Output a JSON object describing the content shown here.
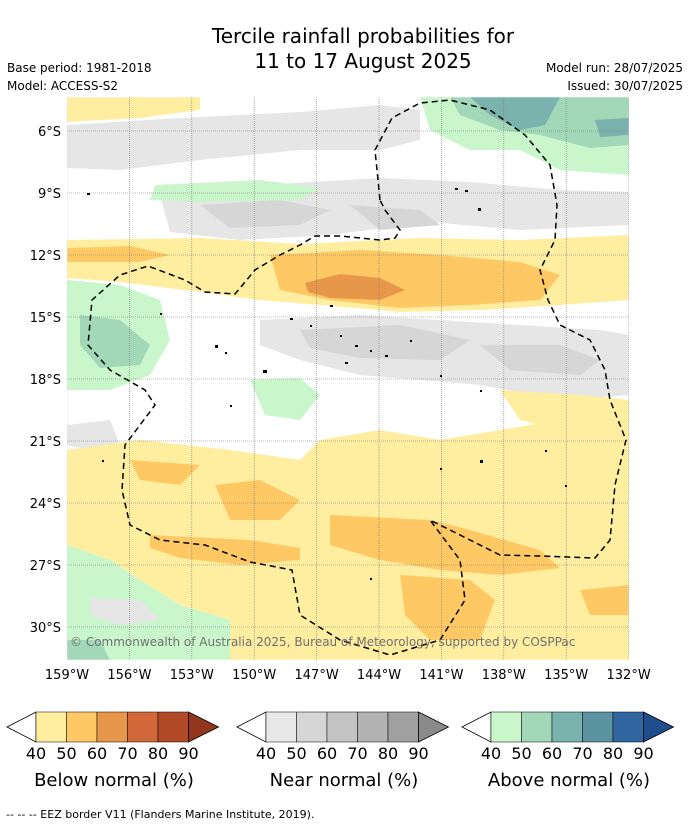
{
  "title": {
    "line1": "Tercile rainfall probabilities for",
    "line2": "11 to 17 August 2025"
  },
  "meta": {
    "base_period": "Base period: 1981-2018",
    "model": "Model: ACCESS-S2",
    "model_run": "Model run: 28/07/2025",
    "issued": "Issued: 30/07/2025"
  },
  "map": {
    "lat_labels": [
      "6°S",
      "9°S",
      "12°S",
      "15°S",
      "18°S",
      "21°S",
      "24°S",
      "27°S",
      "30°S"
    ],
    "lon_labels": [
      "159°W",
      "156°W",
      "153°W",
      "150°W",
      "147°W",
      "144°W",
      "141°W",
      "138°W",
      "135°W",
      "132°W"
    ],
    "copyright": "© Commonwealth of Australia 2025, Bureau of Meteorology, supported by COSPPac"
  },
  "legend": {
    "below": {
      "caption": "Below normal (%)",
      "ticks": [
        "40",
        "50",
        "60",
        "70",
        "80",
        "90"
      ],
      "colors": [
        "#ffeda0",
        "#fec965",
        "#e6974a",
        "#d2683a",
        "#b24a28",
        "#93361e"
      ]
    },
    "near": {
      "caption": "Near normal (%)",
      "ticks": [
        "40",
        "50",
        "60",
        "70",
        "80",
        "90"
      ],
      "colors": [
        "#e8e8e8",
        "#d6d6d6",
        "#c4c4c4",
        "#b2b2b2",
        "#a0a0a0",
        "#8a8a8a"
      ]
    },
    "above": {
      "caption": "Above normal (%)",
      "ticks": [
        "40",
        "50",
        "60",
        "70",
        "80",
        "90"
      ],
      "colors": [
        "#c9f7cb",
        "#a2d8b8",
        "#7ab3ae",
        "#5b93a0",
        "#3066a0",
        "#1f4e8c"
      ]
    }
  },
  "footnote": "-- -- -- EEZ border V11 (Flanders Marine Institute, 2019)."
}
